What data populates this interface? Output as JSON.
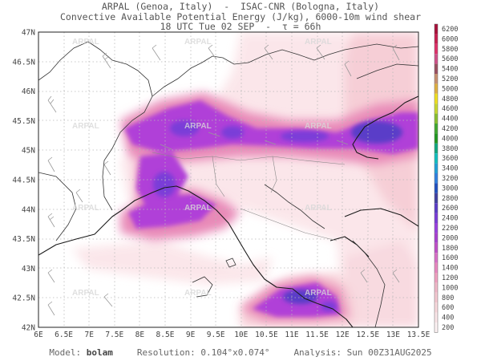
{
  "header": {
    "line1": "ARPAL (Genoa, Italy)  -  ISAC-CNR (Bologna, Italy)",
    "line2": "Convective Available Potential Energy (J/kg), 6000-10m wind shear",
    "line3": "18 UTC Tue 02 SEP  -  τ = 66h"
  },
  "map": {
    "lat_labels": [
      "47N",
      "46.5N",
      "46N",
      "45.5N",
      "45N",
      "44.5N",
      "44N",
      "43.5N",
      "43N",
      "42.5N",
      "42N"
    ],
    "lon_labels": [
      "6E",
      "6.5E",
      "7E",
      "7.5E",
      "8E",
      "8.5E",
      "9E",
      "9.5E",
      "10E",
      "10.5E",
      "11E",
      "11.5E",
      "12E",
      "12.5E",
      "13E",
      "13.5E"
    ],
    "watermark": "ARPAL",
    "extent": {
      "lon_min": 6,
      "lon_max": 13.5,
      "lat_min": 42,
      "lat_max": 47
    }
  },
  "colorbar": {
    "labels": [
      "6200",
      "6000",
      "5800",
      "5600",
      "5400",
      "5200",
      "5000",
      "4800",
      "4600",
      "4400",
      "4200",
      "4000",
      "3800",
      "3600",
      "3400",
      "3200",
      "3000",
      "2800",
      "2600",
      "2400",
      "2200",
      "2000",
      "1800",
      "1600",
      "1400",
      "1200",
      "1000",
      "800",
      "600",
      "400",
      "200"
    ],
    "colors": [
      "#a8103a",
      "#c81e50",
      "#e0306a",
      "#d0508a",
      "#9a5060",
      "#c89070",
      "#e0b040",
      "#f0e020",
      "#c8d830",
      "#88c030",
      "#40a830",
      "#209820",
      "#10a880",
      "#10c0c0",
      "#20a0d8",
      "#3080e0",
      "#2050c0",
      "#4040a0",
      "#5a3cc8",
      "#7a3cd8",
      "#9a40e0",
      "#a840d0",
      "#c050c8",
      "#d870c8",
      "#e888c0",
      "#f0a0c0",
      "#f0b8c8",
      "#f4c8d0",
      "#f8d8dc",
      "#fae6e8",
      "#fdf2f3"
    ]
  },
  "footer": {
    "model_label": "Model:",
    "model_name": "bolam",
    "resolution_label": "Resolution:",
    "resolution_value": "0.104°x0.074°",
    "analysis_label": "Analysis:",
    "analysis_value": "Sun 00Z31AUG2025"
  }
}
